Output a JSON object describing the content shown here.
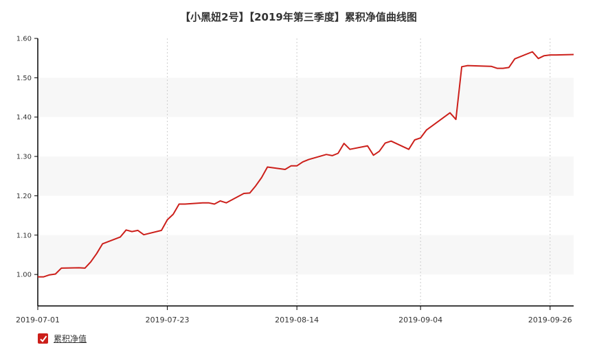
{
  "chart_data": {
    "type": "line",
    "title": "【小黑妞2号】【2019年第三季度】累积净值曲线图",
    "xlabel": "",
    "ylabel": "",
    "ylim": [
      0.92,
      1.6
    ],
    "y_ticks": [
      "1.00",
      "1.10",
      "1.20",
      "1.30",
      "1.40",
      "1.50",
      "1.60"
    ],
    "x_ticks": [
      "2019-07-01",
      "2019-07-23",
      "2019-08-14",
      "2019-09-04",
      "2019-09-26"
    ],
    "grid": "alternating horizontal bands, dotted vertical lines",
    "legend_position": "bottom-left",
    "series": [
      {
        "name": "累积净值",
        "color": "#cc1f1a",
        "dates": [
          "2019-07-01",
          "2019-07-02",
          "2019-07-03",
          "2019-07-04",
          "2019-07-05",
          "2019-07-08",
          "2019-07-09",
          "2019-07-10",
          "2019-07-11",
          "2019-07-12",
          "2019-07-15",
          "2019-07-16",
          "2019-07-17",
          "2019-07-18",
          "2019-07-19",
          "2019-07-22",
          "2019-07-23",
          "2019-07-24",
          "2019-07-25",
          "2019-07-26",
          "2019-07-29",
          "2019-07-30",
          "2019-07-31",
          "2019-08-01",
          "2019-08-02",
          "2019-08-05",
          "2019-08-06",
          "2019-08-07",
          "2019-08-08",
          "2019-08-09",
          "2019-08-12",
          "2019-08-13",
          "2019-08-14",
          "2019-08-15",
          "2019-08-16",
          "2019-08-19",
          "2019-08-20",
          "2019-08-21",
          "2019-08-22",
          "2019-08-23",
          "2019-08-26",
          "2019-08-27",
          "2019-08-28",
          "2019-08-29",
          "2019-08-30",
          "2019-09-02",
          "2019-09-03",
          "2019-09-04",
          "2019-09-05",
          "2019-09-06",
          "2019-09-09",
          "2019-09-10",
          "2019-09-11",
          "2019-09-12",
          "2019-09-16",
          "2019-09-17",
          "2019-09-18",
          "2019-09-19",
          "2019-09-20",
          "2019-09-23",
          "2019-09-24",
          "2019-09-25",
          "2019-09-26",
          "2019-09-27",
          "2019-09-30"
        ],
        "values": [
          0.994,
          0.994,
          0.999,
          1.001,
          1.016,
          1.017,
          1.016,
          1.032,
          1.053,
          1.078,
          1.095,
          1.113,
          1.109,
          1.112,
          1.101,
          1.112,
          1.139,
          1.153,
          1.179,
          1.179,
          1.182,
          1.182,
          1.179,
          1.187,
          1.182,
          1.206,
          1.207,
          1.225,
          1.246,
          1.273,
          1.267,
          1.276,
          1.276,
          1.286,
          1.292,
          1.305,
          1.302,
          1.308,
          1.333,
          1.318,
          1.327,
          1.303,
          1.313,
          1.334,
          1.339,
          1.318,
          1.342,
          1.347,
          1.367,
          1.378,
          1.411,
          1.394,
          1.528,
          1.531,
          1.529,
          1.524,
          1.524,
          1.526,
          1.548,
          1.566,
          1.549,
          1.556,
          1.558,
          1.558,
          1.559
        ]
      }
    ]
  },
  "legend": {
    "checked": true
  }
}
